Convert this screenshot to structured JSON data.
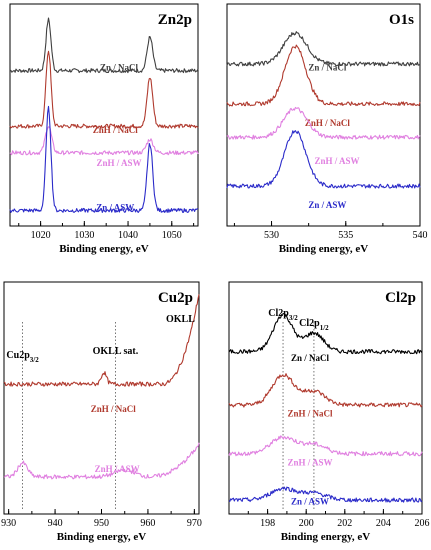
{
  "chart_data": [
    {
      "id": "zn2p",
      "type": "line",
      "title": "Zn2p",
      "xlabel": "Binding energy, eV",
      "ylabel": "",
      "xlim": [
        1013,
        1056
      ],
      "xticks": [
        1020,
        1030,
        1040,
        1050
      ],
      "grid": false,
      "series": [
        {
          "name": "Zn / NaCl",
          "color": "#404040",
          "baseline": 0.7,
          "peaks": [
            [
              1021.8,
              0.23,
              0.8
            ],
            [
              1045.0,
              0.15,
              0.9
            ]
          ]
        },
        {
          "name": "ZnH / NaCl",
          "color": "#b03a2e",
          "baseline": 0.45,
          "peaks": [
            [
              1021.8,
              0.34,
              0.8
            ],
            [
              1045.0,
              0.22,
              0.9
            ]
          ]
        },
        {
          "name": "ZnH / ASW",
          "color": "#e080e0",
          "baseline": 0.33,
          "peaks": [
            [
              1021.8,
              0.12,
              1.0
            ],
            [
              1045.0,
              0.06,
              1.1
            ]
          ]
        },
        {
          "name": "Zn / ASW",
          "color": "#2b2bc9",
          "baseline": 0.07,
          "peaks": [
            [
              1021.8,
              0.46,
              0.8
            ],
            [
              1045.0,
              0.3,
              0.9
            ]
          ]
        }
      ]
    },
    {
      "id": "o1s",
      "type": "line",
      "title": "O1s",
      "xlabel": "Binding energy, eV",
      "ylabel": "",
      "xlim": [
        527,
        540
      ],
      "xticks": [
        530,
        535,
        540
      ],
      "grid": false,
      "series": [
        {
          "name": "Zn / NaCl",
          "color": "#404040",
          "baseline": 0.73,
          "peaks": [
            [
              531.6,
              0.14,
              1.1
            ]
          ]
        },
        {
          "name": "ZnH / NaCl",
          "color": "#b03a2e",
          "baseline": 0.55,
          "peaks": [
            [
              531.6,
              0.26,
              1.0
            ]
          ]
        },
        {
          "name": "ZnH / ASW",
          "color": "#e080e0",
          "baseline": 0.4,
          "peaks": [
            [
              531.6,
              0.13,
              1.1
            ]
          ]
        },
        {
          "name": "Zn / ASW",
          "color": "#2b2bc9",
          "baseline": 0.18,
          "peaks": [
            [
              531.6,
              0.25,
              1.0
            ]
          ]
        }
      ]
    },
    {
      "id": "cu2p",
      "type": "line",
      "title": "Cu2p",
      "xlabel": "Binding energy, eV",
      "ylabel": "",
      "xlim": [
        929,
        971
      ],
      "xticks": [
        930,
        940,
        950,
        960,
        970
      ],
      "grid": false,
      "annotations": [
        {
          "text": "Cu2p",
          "sub": "3/2",
          "x": 933,
          "guide_x": 933
        },
        {
          "text": "OKLL sat.",
          "sub": "",
          "x": 953,
          "guide_x": 953
        },
        {
          "text": "OKLL",
          "sub": "",
          "x": 967,
          "guide_x": null
        }
      ],
      "series": [
        {
          "name": "ZnH / NaCl",
          "color": "#b03a2e",
          "baseline": 0.56,
          "peaks": [
            [
              950.5,
              0.05,
              0.8
            ]
          ],
          "rise_from": 963,
          "rise_to": 0.95
        },
        {
          "name": "ZnH / ASW",
          "color": "#e080e0",
          "baseline": 0.16,
          "peaks": [
            [
              933.0,
              0.06,
              1.5
            ],
            [
              955.0,
              0.03,
              3.0
            ]
          ],
          "rise_from": 960,
          "rise_to": 0.3
        }
      ]
    },
    {
      "id": "cl2p",
      "type": "line",
      "title": "Cl2p",
      "xlabel": "Binding energy, eV",
      "ylabel": "",
      "xlim": [
        196,
        206
      ],
      "xticks": [
        198,
        200,
        202,
        204,
        206
      ],
      "grid": false,
      "annotations": [
        {
          "text": "Cl2p",
          "sub": "3/2",
          "x": 198.8,
          "guide_x": 198.8
        },
        {
          "text": "Cl2p",
          "sub": "1/2",
          "x": 200.4,
          "guide_x": 200.4
        }
      ],
      "series": [
        {
          "name": "Zn / NaCl",
          "color": "#000000",
          "baseline": 0.7,
          "peaks": [
            [
              198.8,
              0.16,
              0.7
            ],
            [
              200.4,
              0.08,
              0.7
            ]
          ]
        },
        {
          "name": "ZnH / NaCl",
          "color": "#b03a2e",
          "baseline": 0.47,
          "peaks": [
            [
              198.8,
              0.13,
              0.8
            ],
            [
              200.4,
              0.06,
              0.8
            ]
          ]
        },
        {
          "name": "ZnH / ASW",
          "color": "#e080e0",
          "baseline": 0.26,
          "peaks": [
            [
              198.8,
              0.07,
              0.9
            ],
            [
              200.4,
              0.04,
              0.9
            ]
          ]
        },
        {
          "name": "Zn / ASW",
          "color": "#2b2bc9",
          "baseline": 0.06,
          "peaks": [
            [
              198.8,
              0.05,
              0.9
            ],
            [
              200.4,
              0.03,
              0.9
            ]
          ]
        }
      ]
    }
  ]
}
